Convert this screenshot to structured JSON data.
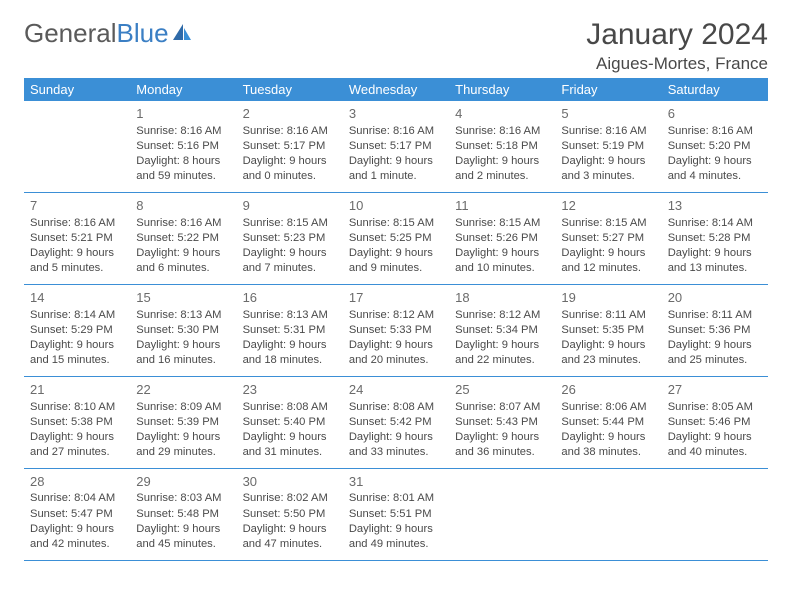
{
  "brand": {
    "word1": "General",
    "word2": "Blue"
  },
  "title": {
    "month": "January 2024",
    "location": "Aigues-Mortes, France"
  },
  "colors": {
    "header_bg": "#3b8fd6",
    "header_fg": "#ffffff",
    "row_border": "#3b8fd6",
    "logo_gray": "#5a5a5a",
    "logo_blue": "#3b7fc4",
    "text": "#4a4a4a",
    "daynum": "#6b6b6b"
  },
  "weekdays": [
    "Sunday",
    "Monday",
    "Tuesday",
    "Wednesday",
    "Thursday",
    "Friday",
    "Saturday"
  ],
  "weeks": [
    [
      null,
      {
        "n": "1",
        "sr": "Sunrise: 8:16 AM",
        "ss": "Sunset: 5:16 PM",
        "dl": "Daylight: 8 hours and 59 minutes."
      },
      {
        "n": "2",
        "sr": "Sunrise: 8:16 AM",
        "ss": "Sunset: 5:17 PM",
        "dl": "Daylight: 9 hours and 0 minutes."
      },
      {
        "n": "3",
        "sr": "Sunrise: 8:16 AM",
        "ss": "Sunset: 5:17 PM",
        "dl": "Daylight: 9 hours and 1 minute."
      },
      {
        "n": "4",
        "sr": "Sunrise: 8:16 AM",
        "ss": "Sunset: 5:18 PM",
        "dl": "Daylight: 9 hours and 2 minutes."
      },
      {
        "n": "5",
        "sr": "Sunrise: 8:16 AM",
        "ss": "Sunset: 5:19 PM",
        "dl": "Daylight: 9 hours and 3 minutes."
      },
      {
        "n": "6",
        "sr": "Sunrise: 8:16 AM",
        "ss": "Sunset: 5:20 PM",
        "dl": "Daylight: 9 hours and 4 minutes."
      }
    ],
    [
      {
        "n": "7",
        "sr": "Sunrise: 8:16 AM",
        "ss": "Sunset: 5:21 PM",
        "dl": "Daylight: 9 hours and 5 minutes."
      },
      {
        "n": "8",
        "sr": "Sunrise: 8:16 AM",
        "ss": "Sunset: 5:22 PM",
        "dl": "Daylight: 9 hours and 6 minutes."
      },
      {
        "n": "9",
        "sr": "Sunrise: 8:15 AM",
        "ss": "Sunset: 5:23 PM",
        "dl": "Daylight: 9 hours and 7 minutes."
      },
      {
        "n": "10",
        "sr": "Sunrise: 8:15 AM",
        "ss": "Sunset: 5:25 PM",
        "dl": "Daylight: 9 hours and 9 minutes."
      },
      {
        "n": "11",
        "sr": "Sunrise: 8:15 AM",
        "ss": "Sunset: 5:26 PM",
        "dl": "Daylight: 9 hours and 10 minutes."
      },
      {
        "n": "12",
        "sr": "Sunrise: 8:15 AM",
        "ss": "Sunset: 5:27 PM",
        "dl": "Daylight: 9 hours and 12 minutes."
      },
      {
        "n": "13",
        "sr": "Sunrise: 8:14 AM",
        "ss": "Sunset: 5:28 PM",
        "dl": "Daylight: 9 hours and 13 minutes."
      }
    ],
    [
      {
        "n": "14",
        "sr": "Sunrise: 8:14 AM",
        "ss": "Sunset: 5:29 PM",
        "dl": "Daylight: 9 hours and 15 minutes."
      },
      {
        "n": "15",
        "sr": "Sunrise: 8:13 AM",
        "ss": "Sunset: 5:30 PM",
        "dl": "Daylight: 9 hours and 16 minutes."
      },
      {
        "n": "16",
        "sr": "Sunrise: 8:13 AM",
        "ss": "Sunset: 5:31 PM",
        "dl": "Daylight: 9 hours and 18 minutes."
      },
      {
        "n": "17",
        "sr": "Sunrise: 8:12 AM",
        "ss": "Sunset: 5:33 PM",
        "dl": "Daylight: 9 hours and 20 minutes."
      },
      {
        "n": "18",
        "sr": "Sunrise: 8:12 AM",
        "ss": "Sunset: 5:34 PM",
        "dl": "Daylight: 9 hours and 22 minutes."
      },
      {
        "n": "19",
        "sr": "Sunrise: 8:11 AM",
        "ss": "Sunset: 5:35 PM",
        "dl": "Daylight: 9 hours and 23 minutes."
      },
      {
        "n": "20",
        "sr": "Sunrise: 8:11 AM",
        "ss": "Sunset: 5:36 PM",
        "dl": "Daylight: 9 hours and 25 minutes."
      }
    ],
    [
      {
        "n": "21",
        "sr": "Sunrise: 8:10 AM",
        "ss": "Sunset: 5:38 PM",
        "dl": "Daylight: 9 hours and 27 minutes."
      },
      {
        "n": "22",
        "sr": "Sunrise: 8:09 AM",
        "ss": "Sunset: 5:39 PM",
        "dl": "Daylight: 9 hours and 29 minutes."
      },
      {
        "n": "23",
        "sr": "Sunrise: 8:08 AM",
        "ss": "Sunset: 5:40 PM",
        "dl": "Daylight: 9 hours and 31 minutes."
      },
      {
        "n": "24",
        "sr": "Sunrise: 8:08 AM",
        "ss": "Sunset: 5:42 PM",
        "dl": "Daylight: 9 hours and 33 minutes."
      },
      {
        "n": "25",
        "sr": "Sunrise: 8:07 AM",
        "ss": "Sunset: 5:43 PM",
        "dl": "Daylight: 9 hours and 36 minutes."
      },
      {
        "n": "26",
        "sr": "Sunrise: 8:06 AM",
        "ss": "Sunset: 5:44 PM",
        "dl": "Daylight: 9 hours and 38 minutes."
      },
      {
        "n": "27",
        "sr": "Sunrise: 8:05 AM",
        "ss": "Sunset: 5:46 PM",
        "dl": "Daylight: 9 hours and 40 minutes."
      }
    ],
    [
      {
        "n": "28",
        "sr": "Sunrise: 8:04 AM",
        "ss": "Sunset: 5:47 PM",
        "dl": "Daylight: 9 hours and 42 minutes."
      },
      {
        "n": "29",
        "sr": "Sunrise: 8:03 AM",
        "ss": "Sunset: 5:48 PM",
        "dl": "Daylight: 9 hours and 45 minutes."
      },
      {
        "n": "30",
        "sr": "Sunrise: 8:02 AM",
        "ss": "Sunset: 5:50 PM",
        "dl": "Daylight: 9 hours and 47 minutes."
      },
      {
        "n": "31",
        "sr": "Sunrise: 8:01 AM",
        "ss": "Sunset: 5:51 PM",
        "dl": "Daylight: 9 hours and 49 minutes."
      },
      null,
      null,
      null
    ]
  ]
}
